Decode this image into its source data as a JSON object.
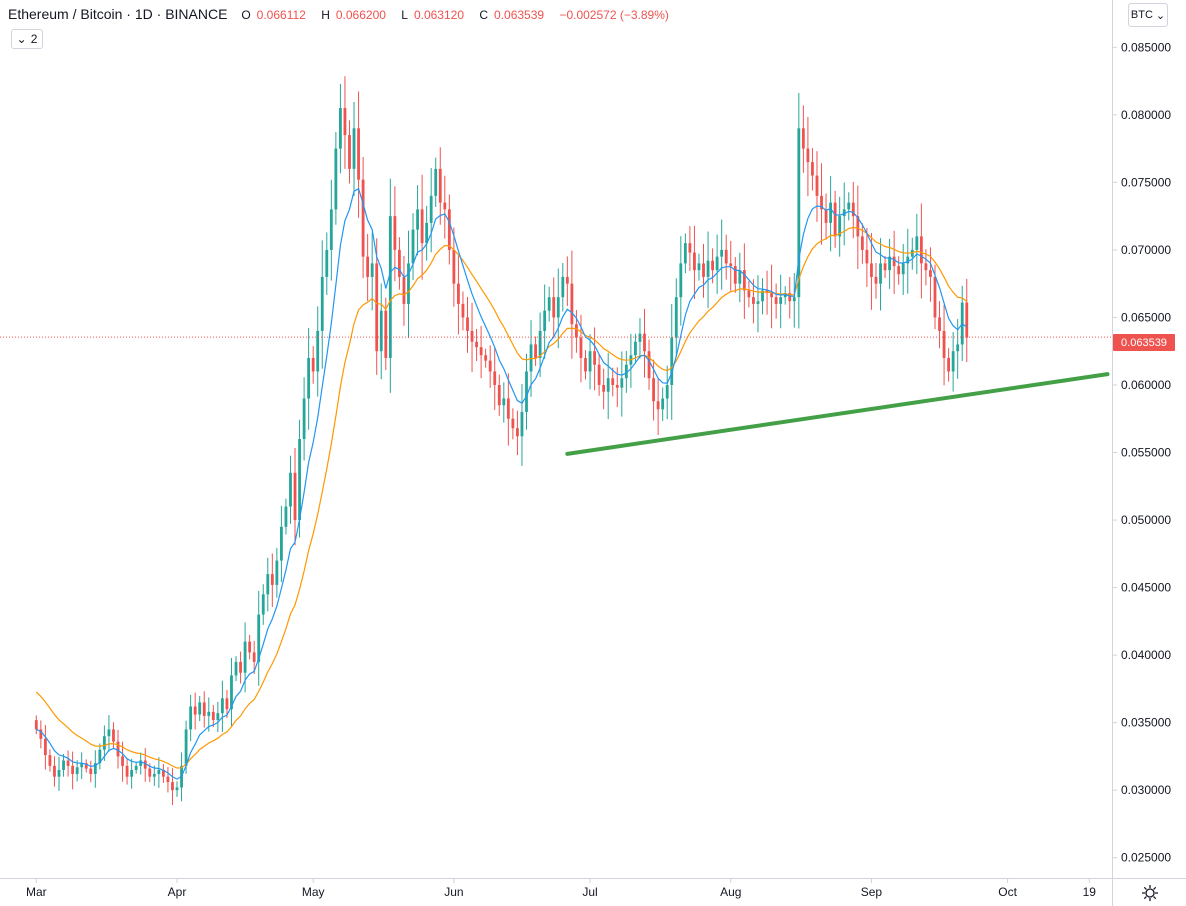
{
  "header": {
    "symbol": "Ethereum / Bitcoin",
    "interval": "1D",
    "exchange": "BINANCE",
    "open_key": "O",
    "open": "0.066112",
    "high_key": "H",
    "high": "0.066200",
    "low_key": "L",
    "low": "0.063120",
    "close_key": "C",
    "close": "0.063539",
    "change": "−0.002572 (−3.89%)"
  },
  "indicator_count": "2",
  "currency": "BTC",
  "last_price_label": "0.063539",
  "colors": {
    "up": "#26a69a",
    "down": "#ef5350",
    "ma_fast": "#2196f3",
    "ma_slow": "#ff9800",
    "trendline": "#43a047",
    "last_line": "#ef5350"
  },
  "chart_data": {
    "type": "candlestick",
    "ylim": [
      0.0235,
      0.0885
    ],
    "y_ticks": [
      "0.085000",
      "0.080000",
      "0.075000",
      "0.070000",
      "0.065000",
      "0.060000",
      "0.055000",
      "0.050000",
      "0.045000",
      "0.040000",
      "0.035000",
      "0.030000",
      "0.025000"
    ],
    "x_ticks": [
      {
        "label": "Mar",
        "day": 0
      },
      {
        "label": "Apr",
        "day": 31
      },
      {
        "label": "May",
        "day": 61
      },
      {
        "label": "Jun",
        "day": 92
      },
      {
        "label": "Jul",
        "day": 122
      },
      {
        "label": "Aug",
        "day": 153
      },
      {
        "label": "Sep",
        "day": 184
      },
      {
        "label": "Oct",
        "day": 214
      },
      {
        "label": "19",
        "day": 232
      }
    ],
    "x_range_days": [
      -8,
      237
    ],
    "last_price": 0.063539,
    "trendline": {
      "from": {
        "day": 117,
        "price": 0.0549
      },
      "to": {
        "day": 236,
        "price": 0.0608
      }
    },
    "closes": [
      0.0345,
      0.0338,
      0.0326,
      0.0318,
      0.031,
      0.0315,
      0.0322,
      0.0318,
      0.0312,
      0.0317,
      0.032,
      0.0316,
      0.0312,
      0.032,
      0.033,
      0.034,
      0.0345,
      0.0336,
      0.0325,
      0.0318,
      0.031,
      0.0315,
      0.0318,
      0.0322,
      0.0316,
      0.031,
      0.0312,
      0.0315,
      0.031,
      0.0306,
      0.03,
      0.0302,
      0.0318,
      0.0345,
      0.0362,
      0.0356,
      0.0365,
      0.0355,
      0.0358,
      0.0352,
      0.0357,
      0.0368,
      0.036,
      0.0385,
      0.0395,
      0.0387,
      0.041,
      0.0402,
      0.0395,
      0.043,
      0.0445,
      0.046,
      0.0452,
      0.047,
      0.0495,
      0.051,
      0.0535,
      0.05,
      0.056,
      0.059,
      0.062,
      0.061,
      0.064,
      0.068,
      0.07,
      0.073,
      0.0775,
      0.0805,
      0.0785,
      0.076,
      0.079,
      0.0752,
      0.0695,
      0.068,
      0.069,
      0.0625,
      0.0655,
      0.062,
      0.0725,
      0.07,
      0.068,
      0.066,
      0.069,
      0.0715,
      0.073,
      0.0705,
      0.072,
      0.074,
      0.076,
      0.0735,
      0.073,
      0.07,
      0.0675,
      0.066,
      0.065,
      0.064,
      0.0632,
      0.0628,
      0.0622,
      0.0618,
      0.061,
      0.06,
      0.0585,
      0.059,
      0.0575,
      0.0568,
      0.0562,
      0.058,
      0.061,
      0.063,
      0.062,
      0.064,
      0.0655,
      0.0665,
      0.065,
      0.0665,
      0.068,
      0.0675,
      0.0645,
      0.0635,
      0.062,
      0.061,
      0.0625,
      0.0615,
      0.06,
      0.0595,
      0.0605,
      0.06,
      0.0598,
      0.0605,
      0.0615,
      0.0622,
      0.0632,
      0.0638,
      0.0625,
      0.0605,
      0.0588,
      0.0582,
      0.059,
      0.06,
      0.0635,
      0.0665,
      0.069,
      0.0705,
      0.0698,
      0.0685,
      0.069,
      0.068,
      0.0692,
      0.0685,
      0.0695,
      0.07,
      0.069,
      0.0688,
      0.0675,
      0.0685,
      0.067,
      0.0665,
      0.066,
      0.0662,
      0.067,
      0.0668,
      0.0665,
      0.066,
      0.0665,
      0.0668,
      0.0662,
      0.0665,
      0.079,
      0.0775,
      0.0765,
      0.0755,
      0.074,
      0.073,
      0.072,
      0.0735,
      0.071,
      0.0725,
      0.073,
      0.0735,
      0.0725,
      0.071,
      0.07,
      0.069,
      0.068,
      0.0675,
      0.069,
      0.0685,
      0.0695,
      0.0688,
      0.0682,
      0.069,
      0.0695,
      0.07,
      0.071,
      0.069,
      0.0685,
      0.068,
      0.065,
      0.064,
      0.062,
      0.061,
      0.0625,
      0.063,
      0.0661,
      0.0635
    ]
  }
}
